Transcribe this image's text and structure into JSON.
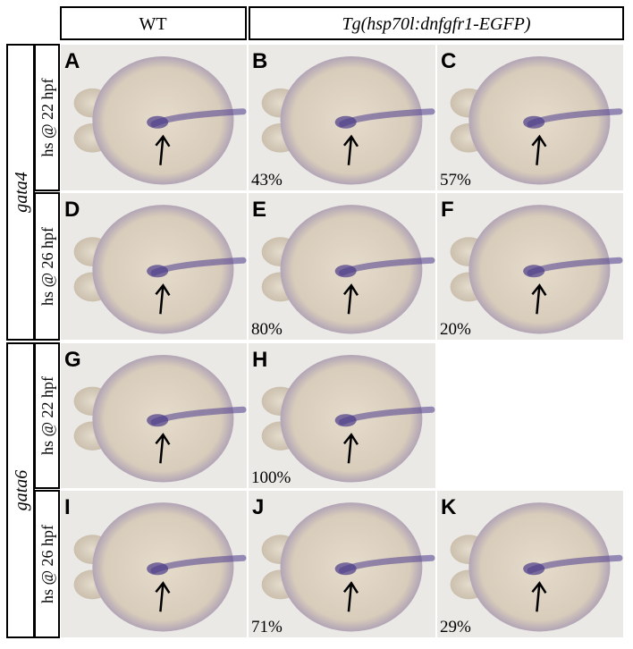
{
  "header": {
    "columns": [
      "WT",
      "Tg(hsp70l:dnfgfr1-EGFP)"
    ]
  },
  "row_groups": [
    {
      "gene": "gata4",
      "conditions": [
        "hs @ 22 hpf",
        "hs @ 26 hpf"
      ]
    },
    {
      "gene": "gata6",
      "conditions": [
        "hs @ 22 hpf",
        "hs @ 26 hpf"
      ]
    }
  ],
  "panels": [
    {
      "label": "A"
    },
    {
      "label": "B",
      "percent": "43%"
    },
    {
      "label": "C",
      "percent": "57%"
    },
    {
      "label": "D"
    },
    {
      "label": "E",
      "percent": "80%"
    },
    {
      "label": "F",
      "percent": "20%"
    },
    {
      "label": "G"
    },
    {
      "label": "H",
      "percent": "100%"
    },
    {
      "label": "I"
    },
    {
      "label": "J",
      "percent": "71%"
    },
    {
      "label": "K",
      "percent": "29%"
    }
  ]
}
